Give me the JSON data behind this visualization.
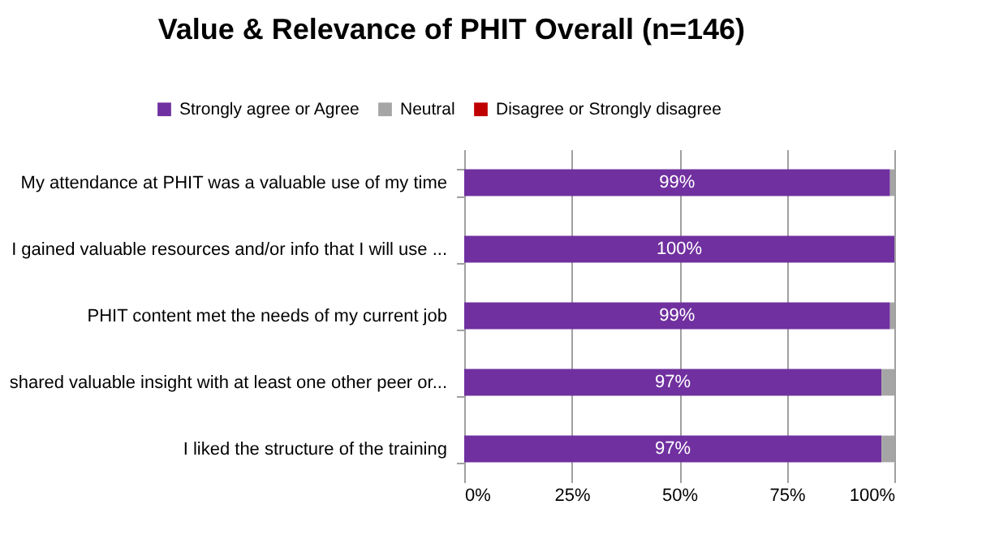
{
  "chart_data": {
    "type": "bar",
    "orientation": "horizontal",
    "stacked": true,
    "title": "Value & Relevance of PHIT Overall (n=146)",
    "categories": [
      "My attendance at PHIT was a valuable use of my time",
      "I gained valuable resources and/or info that I will use ...",
      "PHIT content met the needs of my current job",
      "shared valuable insight with at least one other peer or...",
      "I liked the structure of the training"
    ],
    "series": [
      {
        "name": "Strongly agree or Agree",
        "color": "#7030a0",
        "values": [
          99,
          100,
          99,
          97,
          97
        ],
        "value_labels": [
          "99%",
          "100%",
          "99%",
          "97%",
          "97%"
        ]
      },
      {
        "name": "Neutral",
        "color": "#a5a5a5",
        "values": [
          1,
          0,
          1,
          3,
          3
        ]
      },
      {
        "name": "Disagree or Strongly disagree",
        "color": "#c00000",
        "values": [
          0,
          0,
          0,
          0,
          0
        ]
      }
    ],
    "xlim": [
      0,
      100
    ],
    "xticks": [
      {
        "value": 0,
        "label": "0%"
      },
      {
        "value": 25,
        "label": "25%"
      },
      {
        "value": 50,
        "label": "50%"
      },
      {
        "value": 75,
        "label": "75%"
      },
      {
        "value": 100,
        "label": "100%"
      }
    ],
    "grid": "x",
    "legend": "top"
  }
}
